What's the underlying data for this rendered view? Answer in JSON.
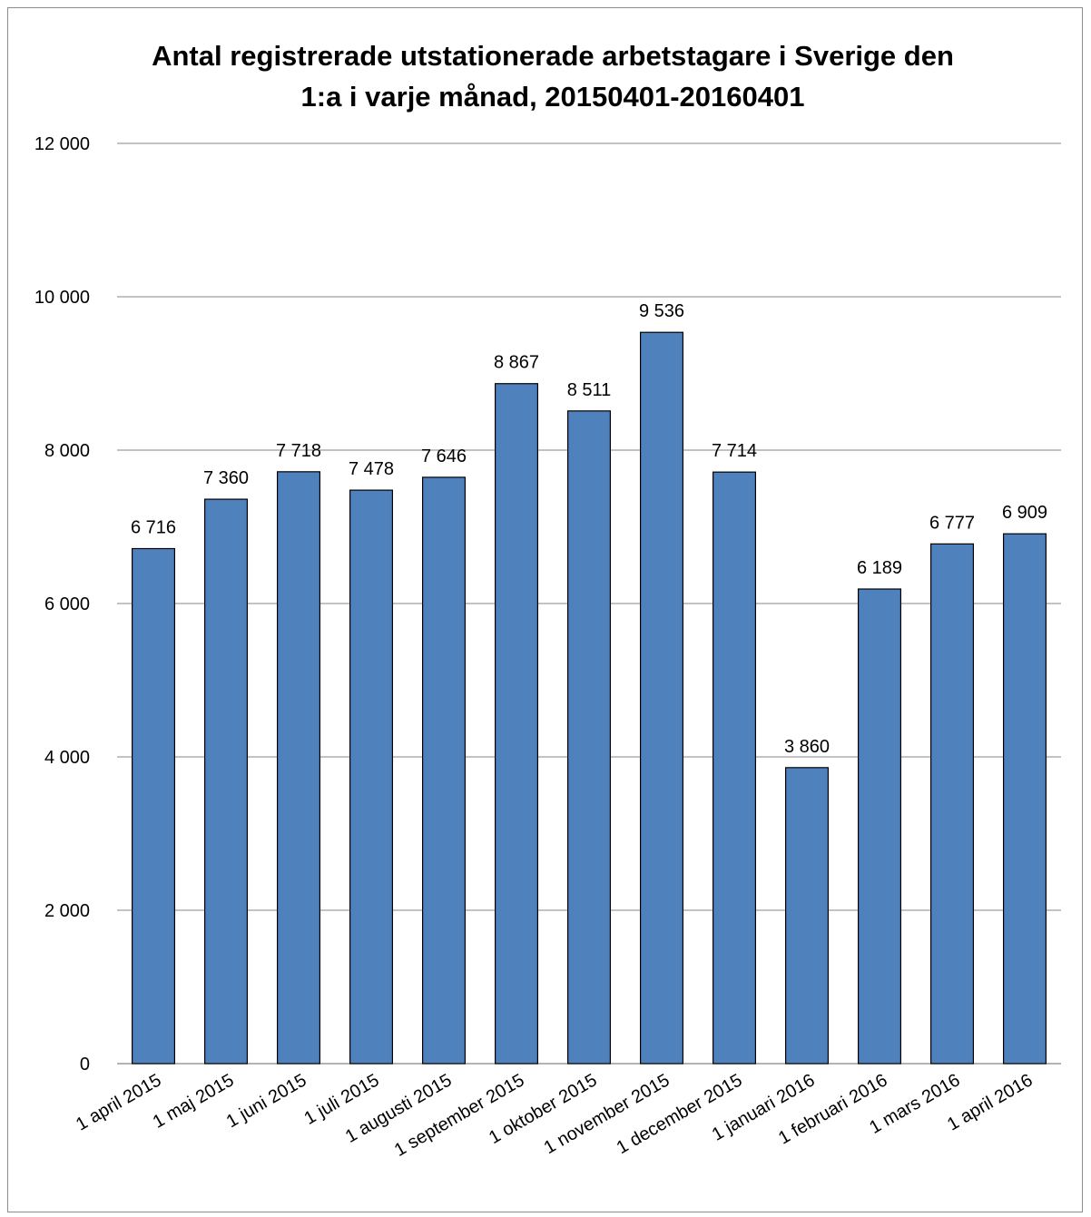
{
  "chart_data": {
    "type": "bar",
    "title_lines": [
      "Antal registrerade utstationerade arbetstagare i Sverige den",
      "1:a i varje månad, 20150401-20160401"
    ],
    "categories": [
      "1 april 2015",
      "1 maj 2015",
      "1 juni 2015",
      "1 juli 2015",
      "1 augusti 2015",
      "1 september 2015",
      "1 oktober 2015",
      "1 november 2015",
      "1 december 2015",
      "1 januari 2016",
      "1 februari 2016",
      "1 mars 2016",
      "1 april 2016"
    ],
    "values": [
      6716,
      7360,
      7718,
      7478,
      7646,
      8867,
      8511,
      9536,
      7714,
      3860,
      6189,
      6777,
      6909
    ],
    "data_labels": [
      "6 716",
      "7 360",
      "7 718",
      "7 478",
      "7 646",
      "8 867",
      "8 511",
      "9 536",
      "7 714",
      "3 860",
      "6 189",
      "6 777",
      "6 909"
    ],
    "ylim": [
      0,
      12000
    ],
    "yticks": [
      0,
      2000,
      4000,
      6000,
      8000,
      10000,
      12000
    ],
    "ytick_labels": [
      "0",
      "2 000",
      "4 000",
      "6 000",
      "8 000",
      "10 000",
      "12 000"
    ],
    "grid": true,
    "legend": "none",
    "colors": {
      "bar": "#4f81bd",
      "bar_border": "#000000",
      "grid": "#868686"
    }
  }
}
